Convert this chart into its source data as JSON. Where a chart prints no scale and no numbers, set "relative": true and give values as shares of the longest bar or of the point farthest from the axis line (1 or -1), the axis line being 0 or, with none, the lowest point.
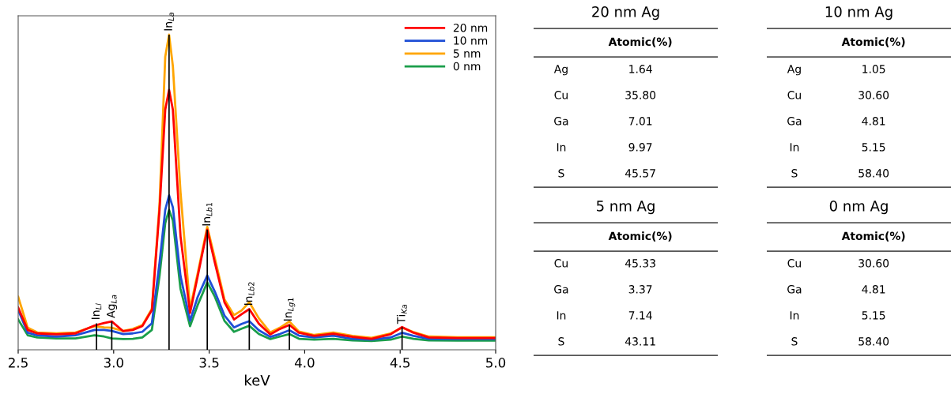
{
  "chart_data": [
    {
      "type": "line",
      "relative": true,
      "xlabel": "keV",
      "xlim": [
        2.5,
        5.0
      ],
      "xticks": [
        2.5,
        {
          "value": 3.0,
          "label": "3.0"
        },
        3.5,
        {
          "value": 4.0,
          "label": "4.0"
        },
        4.5,
        {
          "value": 5.0,
          "label": "5.0"
        }
      ],
      "legend": "top right",
      "grid": false,
      "marker": "none",
      "line_style": "solid",
      "x": [
        2.5,
        2.55,
        2.6,
        2.7,
        2.8,
        2.9,
        2.95,
        2.99,
        3.05,
        3.1,
        3.15,
        3.2,
        3.24,
        3.27,
        3.29,
        3.31,
        3.35,
        3.4,
        3.44,
        3.49,
        3.53,
        3.58,
        3.63,
        3.67,
        3.71,
        3.76,
        3.82,
        3.87,
        3.92,
        3.97,
        4.05,
        4.15,
        4.25,
        4.35,
        4.45,
        4.51,
        4.57,
        4.65,
        4.8,
        5.0
      ],
      "series": [
        {
          "name": "20 nm",
          "color": "#ff0000",
          "values": [
            0.134,
            0.063,
            0.052,
            0.049,
            0.052,
            0.077,
            0.085,
            0.09,
            0.059,
            0.063,
            0.075,
            0.126,
            0.444,
            0.762,
            0.825,
            0.762,
            0.36,
            0.117,
            0.234,
            0.381,
            0.276,
            0.151,
            0.096,
            0.113,
            0.129,
            0.083,
            0.049,
            0.066,
            0.079,
            0.054,
            0.044,
            0.051,
            0.041,
            0.035,
            0.049,
            0.072,
            0.054,
            0.039,
            0.037,
            0.037
          ]
        },
        {
          "name": "10 nm",
          "color": "#1f4fd6",
          "values": [
            0.126,
            0.054,
            0.046,
            0.042,
            0.046,
            0.063,
            0.063,
            0.06,
            0.05,
            0.052,
            0.057,
            0.084,
            0.276,
            0.444,
            0.49,
            0.452,
            0.234,
            0.092,
            0.168,
            0.236,
            0.184,
            0.109,
            0.071,
            0.082,
            0.091,
            0.062,
            0.041,
            0.05,
            0.062,
            0.045,
            0.039,
            0.045,
            0.035,
            0.032,
            0.039,
            0.054,
            0.044,
            0.035,
            0.034,
            0.034
          ]
        },
        {
          "name": "5 nm",
          "color": "#ffa500",
          "values": [
            0.168,
            0.07,
            0.055,
            0.052,
            0.055,
            0.075,
            0.071,
            0.07,
            0.06,
            0.066,
            0.078,
            0.13,
            0.46,
            0.93,
            1.0,
            0.9,
            0.5,
            0.13,
            0.243,
            0.39,
            0.29,
            0.16,
            0.11,
            0.125,
            0.151,
            0.1,
            0.055,
            0.07,
            0.09,
            0.058,
            0.047,
            0.055,
            0.044,
            0.038,
            0.052,
            0.07,
            0.056,
            0.042,
            0.04,
            0.04
          ]
        },
        {
          "type": "bar",
          "color": "#000000",
          "x": [
            2.91,
            2.99,
            3.29,
            3.49,
            3.71,
            3.92,
            4.51
          ],
          "values": [
            0.084,
            0.09,
            1.0,
            0.381,
            0.129,
            0.079,
            0.072
          ]
        },
        {
          "name": "0 nm",
          "color": "#1a9e4a",
          "values": [
            0.096,
            0.046,
            0.039,
            0.036,
            0.036,
            0.046,
            0.042,
            0.036,
            0.034,
            0.035,
            0.039,
            0.063,
            0.234,
            0.402,
            0.444,
            0.41,
            0.193,
            0.075,
            0.142,
            0.214,
            0.168,
            0.092,
            0.057,
            0.067,
            0.076,
            0.05,
            0.034,
            0.042,
            0.05,
            0.035,
            0.032,
            0.035,
            0.03,
            0.028,
            0.032,
            0.042,
            0.035,
            0.03,
            0.029,
            0.029
          ]
        }
      ],
      "annotations": [
        {
          "text": "In$_{Ll}$",
          "x": 2.91,
          "y": 0.084
        },
        {
          "text": "Ag$_{La}$",
          "x": 2.99,
          "y": 0.09
        },
        {
          "text": "In$_{La}$",
          "x": 3.29,
          "y": 1.0
        },
        {
          "text": "In$_{Lb1}$",
          "x": 3.49,
          "y": 0.381
        },
        {
          "text": "In$_{Lb2}$",
          "x": 3.71,
          "y": 0.129
        },
        {
          "text": "In$_{Lg1}$",
          "x": 3.92,
          "y": 0.079
        },
        {
          "text": "Ti$_{Ka}$",
          "x": 4.51,
          "y": 0.072
        }
      ]
    },
    {
      "type": "other",
      "title": "20 nm Ag",
      "annotations": [
        "Atomic(%)"
      ],
      "categories": [
        "Ag",
        "Cu",
        "Ga",
        "In",
        "S"
      ],
      "value_labels": [
        "1.64",
        "35.80",
        "7.01",
        "9.97",
        "45.57"
      ]
    },
    {
      "type": "other",
      "title": "10 nm Ag",
      "annotations": [
        "Atomic(%)"
      ],
      "categories": [
        "Ag",
        "Cu",
        "Ga",
        "In",
        "S"
      ],
      "value_labels": [
        "1.05",
        "30.60",
        "4.81",
        "5.15",
        "58.40"
      ]
    },
    {
      "type": "other",
      "title": "5 nm Ag",
      "annotations": [
        "Atomic(%)"
      ],
      "categories": [
        "Cu",
        "Ga",
        "In",
        "S"
      ],
      "value_labels": [
        "45.33",
        "3.37",
        "7.14",
        "43.11"
      ]
    },
    {
      "type": "other",
      "title": "0 nm Ag",
      "annotations": [
        "Atomic(%)"
      ],
      "categories": [
        "Cu",
        "Ga",
        "In",
        "S"
      ],
      "value_labels": [
        "30.60",
        "4.81",
        "5.15",
        "58.40"
      ]
    }
  ]
}
